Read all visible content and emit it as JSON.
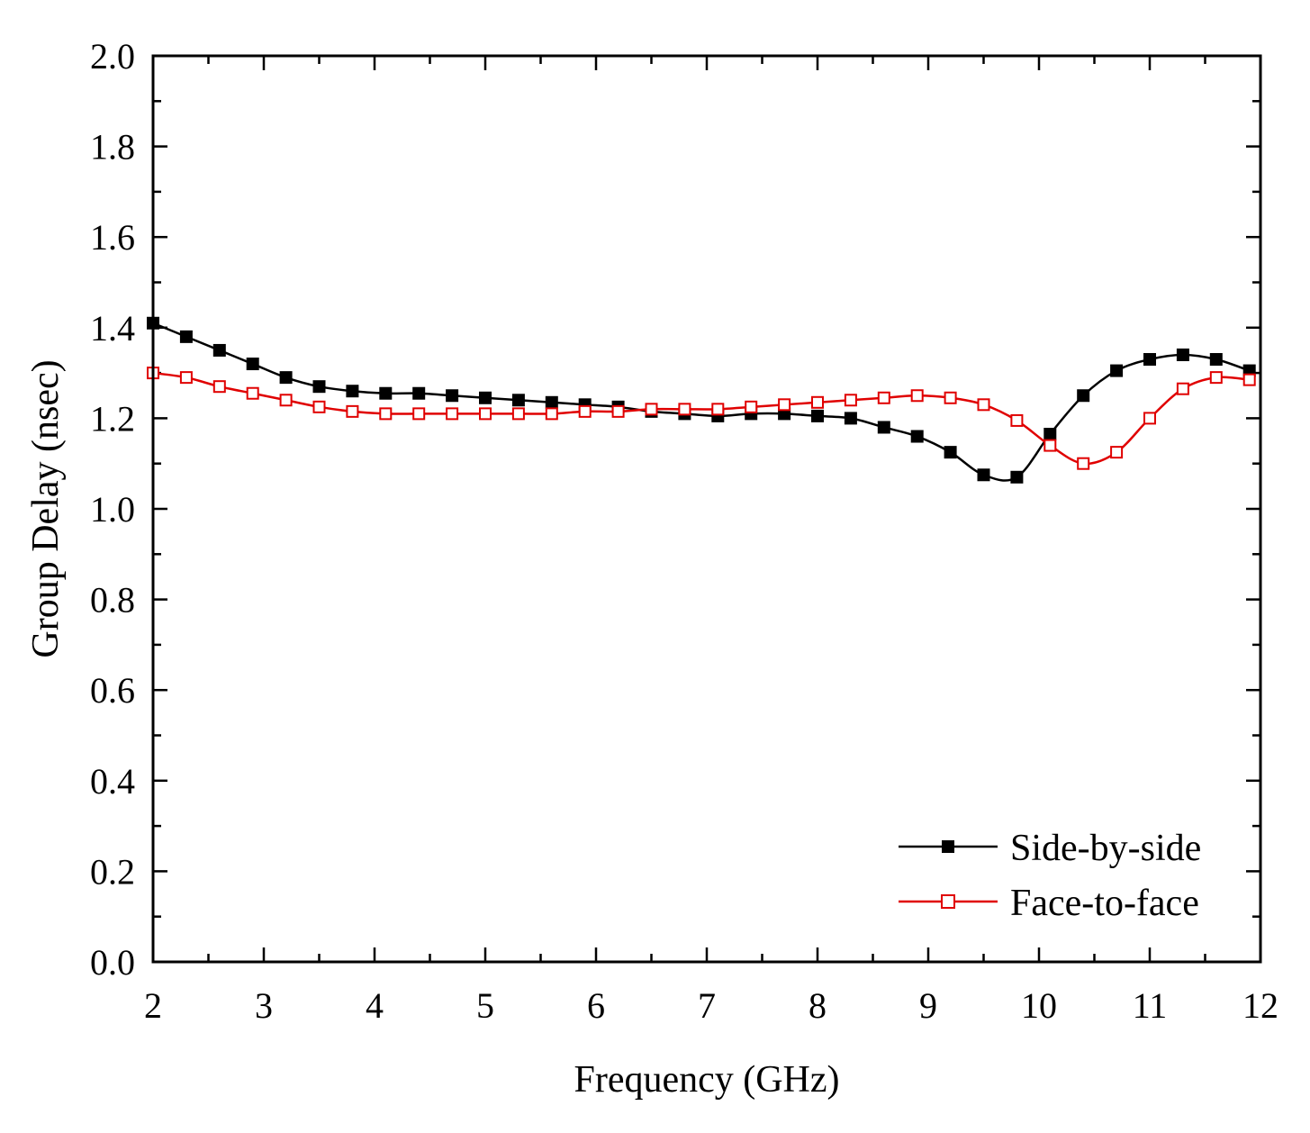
{
  "chart_data": {
    "type": "line",
    "title": "",
    "xlabel": "Frequency (GHz)",
    "ylabel": "Group Delay (nsec)",
    "xlim": [
      2,
      12
    ],
    "ylim": [
      0.0,
      2.0
    ],
    "x_ticks": [
      "2",
      "3",
      "4",
      "5",
      "6",
      "7",
      "8",
      "9",
      "10",
      "11",
      "12"
    ],
    "y_ticks": [
      "0.0",
      "0.2",
      "0.4",
      "0.6",
      "0.8",
      "1.0",
      "1.2",
      "1.4",
      "1.6",
      "1.8",
      "2.0"
    ],
    "legend_position": "bottom-right",
    "series": [
      {
        "name": "Side-by-side",
        "color": "#000000",
        "marker": "filled-square",
        "x": [
          2.0,
          2.3,
          2.6,
          2.9,
          3.2,
          3.5,
          3.8,
          4.1,
          4.4,
          4.7,
          5.0,
          5.3,
          5.6,
          5.9,
          6.2,
          6.5,
          6.8,
          7.1,
          7.4,
          7.7,
          8.0,
          8.3,
          8.6,
          8.9,
          9.2,
          9.5,
          9.8,
          10.1,
          10.4,
          10.7,
          11.0,
          11.3,
          11.6,
          11.9
        ],
        "y": [
          1.41,
          1.38,
          1.35,
          1.32,
          1.29,
          1.27,
          1.26,
          1.255,
          1.255,
          1.25,
          1.245,
          1.24,
          1.235,
          1.23,
          1.225,
          1.215,
          1.21,
          1.205,
          1.21,
          1.21,
          1.205,
          1.2,
          1.18,
          1.16,
          1.125,
          1.075,
          1.07,
          1.165,
          1.25,
          1.305,
          1.33,
          1.34,
          1.33,
          1.305
        ]
      },
      {
        "name": "Face-to-face",
        "color": "#e00000",
        "marker": "open-square",
        "x": [
          2.0,
          2.3,
          2.6,
          2.9,
          3.2,
          3.5,
          3.8,
          4.1,
          4.4,
          4.7,
          5.0,
          5.3,
          5.6,
          5.9,
          6.2,
          6.5,
          6.8,
          7.1,
          7.4,
          7.7,
          8.0,
          8.3,
          8.6,
          8.9,
          9.2,
          9.5,
          9.8,
          10.1,
          10.4,
          10.7,
          11.0,
          11.3,
          11.6,
          11.9
        ],
        "y": [
          1.3,
          1.29,
          1.27,
          1.255,
          1.24,
          1.225,
          1.215,
          1.21,
          1.21,
          1.21,
          1.21,
          1.21,
          1.21,
          1.215,
          1.215,
          1.22,
          1.22,
          1.22,
          1.225,
          1.23,
          1.235,
          1.24,
          1.245,
          1.25,
          1.245,
          1.23,
          1.195,
          1.14,
          1.1,
          1.125,
          1.2,
          1.265,
          1.29,
          1.285
        ]
      }
    ]
  }
}
